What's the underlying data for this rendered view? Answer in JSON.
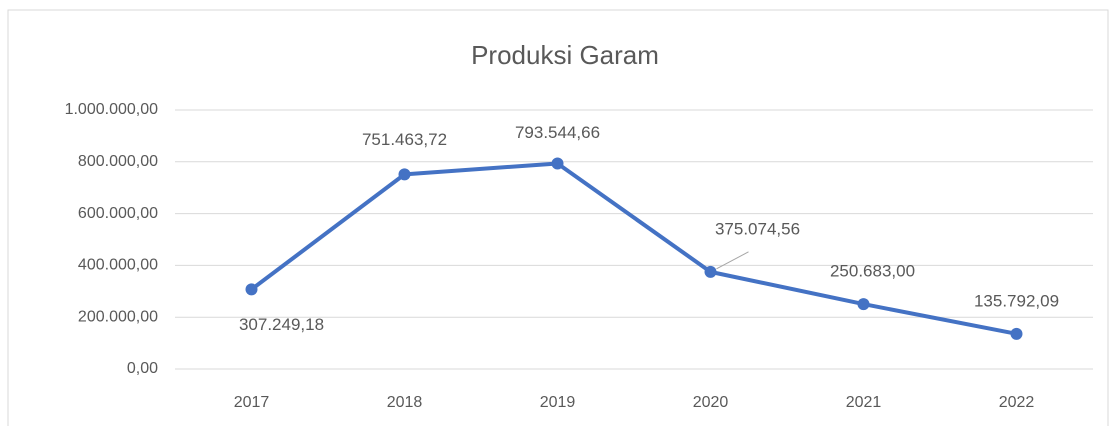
{
  "chart_data": {
    "type": "line",
    "title": "Produksi Garam",
    "categories": [
      "2017",
      "2018",
      "2019",
      "2020",
      "2021",
      "2022"
    ],
    "series": [
      {
        "name": "Produksi Garam",
        "color": "#4472c4",
        "values": [
          307249.18,
          751463.72,
          793544.66,
          375074.56,
          250683.0,
          135792.09
        ],
        "value_labels": [
          "307.249,18",
          "751.463,72",
          "793.544,66",
          "375.074,56",
          "250.683,00",
          "135.792,09"
        ]
      }
    ],
    "ylim": [
      0,
      1000000
    ],
    "yticks": [
      {
        "value": 0,
        "label": "0,00"
      },
      {
        "value": 200000,
        "label": "200.000,00"
      },
      {
        "value": 400000,
        "label": "400.000,00"
      },
      {
        "value": 600000,
        "label": "600.000,00"
      },
      {
        "value": 800000,
        "label": "800.000,00"
      },
      {
        "value": 1000000,
        "label": "1.000.000,00"
      }
    ],
    "grid": true
  }
}
